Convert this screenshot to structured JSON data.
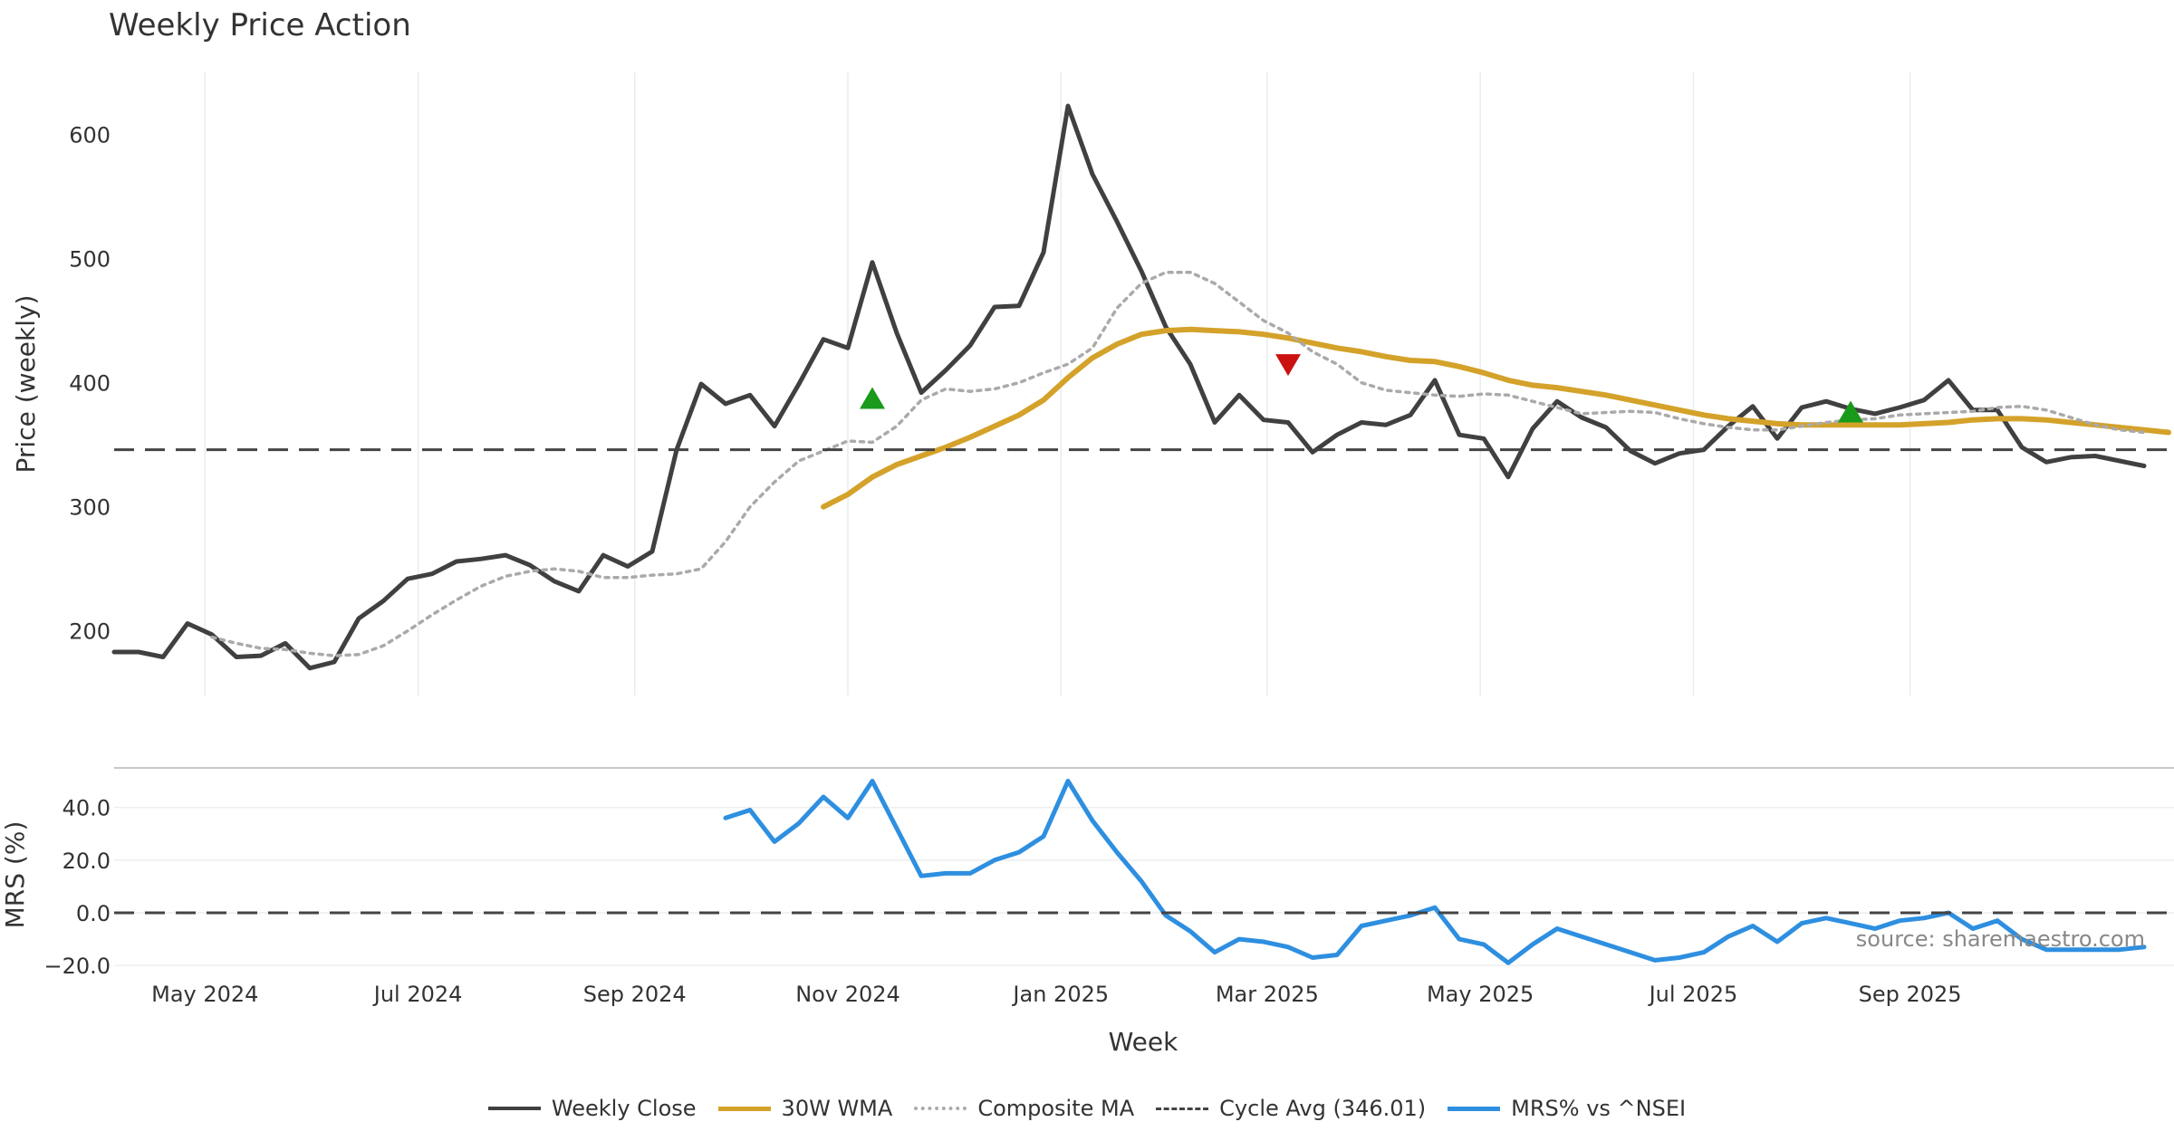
{
  "chart_data": [
    {
      "type": "line",
      "title": "Weekly Price Action",
      "ylabel": "Price (weekly)",
      "ylim": [
        148,
        650
      ],
      "yticks": [
        200,
        300,
        400,
        500,
        600
      ],
      "grid": true,
      "x_start": "2024-04-05",
      "x_step_days": 7,
      "series": [
        {
          "name": "Weekly Close",
          "color": "#404040",
          "style": "solid",
          "values": [
            183,
            183,
            179,
            206,
            197,
            179,
            180,
            190,
            170,
            175,
            210,
            224,
            242,
            246,
            256,
            258,
            261,
            253,
            240,
            232,
            261,
            252,
            264,
            346,
            399,
            383,
            390,
            365,
            399,
            435,
            428,
            497,
            440,
            392,
            410,
            430,
            461,
            462,
            505,
            623,
            568,
            530,
            490,
            445,
            415,
            368,
            390,
            370,
            368,
            344,
            358,
            368,
            366,
            374,
            402,
            358,
            355,
            324,
            363,
            385,
            372,
            364,
            345,
            335,
            343,
            346,
            365,
            381,
            355,
            380,
            385,
            379,
            375,
            380,
            386,
            402,
            378,
            378,
            348,
            336,
            340,
            341,
            337,
            333
          ]
        },
        {
          "name": "30W WMA",
          "color": "#D4A22A",
          "style": "solid",
          "start_index": 29,
          "values": [
            300,
            310,
            324,
            334,
            341,
            348,
            356,
            365,
            374,
            386,
            404,
            420,
            431,
            439,
            442,
            443,
            442,
            441,
            439,
            436,
            432,
            428,
            425,
            421,
            418,
            417,
            413,
            408,
            402,
            398,
            396,
            393,
            390,
            386,
            382,
            378,
            374,
            371,
            369,
            367,
            366,
            366,
            366,
            366,
            366,
            367,
            368,
            370,
            371,
            371,
            370,
            368,
            366,
            364,
            362,
            360
          ]
        },
        {
          "name": "Composite MA",
          "color": "#AAAAAA",
          "style": "dotted",
          "start_index": 4,
          "values": [
            195,
            190,
            186,
            185,
            182,
            180,
            181,
            188,
            200,
            213,
            225,
            236,
            244,
            248,
            250,
            248,
            243,
            243,
            245,
            246,
            250,
            272,
            300,
            320,
            337,
            345,
            353,
            352,
            365,
            386,
            395,
            393,
            395,
            400,
            408,
            415,
            428,
            460,
            480,
            489,
            489,
            480,
            465,
            450,
            440,
            425,
            415,
            400,
            394,
            392,
            390,
            389,
            391,
            390,
            385,
            380,
            375,
            376,
            377,
            376,
            371,
            367,
            364,
            362,
            362,
            365,
            368,
            370,
            371,
            374,
            375,
            376,
            377,
            380,
            381,
            378,
            372,
            366,
            362,
            360
          ]
        },
        {
          "name": "Cycle Avg (346.01)",
          "color": "#444444",
          "style": "dashed",
          "constant": 346.01
        }
      ],
      "markers": [
        {
          "type": "up",
          "index": 31,
          "value": 387,
          "color": "#1A9A1A"
        },
        {
          "type": "down",
          "index": 48,
          "value": 415,
          "color": "#CC1111"
        },
        {
          "type": "up",
          "index": 71,
          "value": 376,
          "color": "#1A9A1A"
        }
      ]
    },
    {
      "type": "line",
      "ylabel": "MRS (%)",
      "ylim": [
        -22,
        55
      ],
      "yticks": [
        -20.0,
        0.0,
        20.0,
        40.0
      ],
      "ytick_labels": [
        "−20.0",
        "0.0",
        "20.0",
        "40.0"
      ],
      "xlabel": "Week",
      "xticks": [
        "May 2024",
        "Jul 2024",
        "Sep 2024",
        "Nov 2024",
        "Jan 2025",
        "Mar 2025",
        "May 2025",
        "Jul 2025",
        "Sep 2025"
      ],
      "xtick_dates": [
        "2024-05-01",
        "2024-07-01",
        "2024-09-01",
        "2024-11-01",
        "2025-01-01",
        "2025-03-01",
        "2025-05-01",
        "2025-07-01",
        "2025-09-01"
      ],
      "series": [
        {
          "name": "MRS% vs ^NSEI",
          "color": "#2E8FE0",
          "style": "solid",
          "start_index": 25,
          "values": [
            36,
            39,
            27,
            34,
            44,
            36,
            50,
            32,
            14,
            15,
            15,
            20,
            23,
            29,
            50,
            35,
            23,
            12,
            -1,
            -7,
            -15,
            -10,
            -11,
            -13,
            -17,
            -16,
            -5,
            -3,
            -1,
            2,
            -10,
            -12,
            -19,
            -12,
            -6,
            -9,
            -12,
            -15,
            -18,
            -17,
            -15,
            -9,
            -5,
            -11,
            -4,
            -2,
            -4,
            -6,
            -3,
            -2,
            0,
            -6,
            -3,
            -10,
            -14,
            -14,
            -14,
            -14,
            -13
          ]
        },
        {
          "name": "zero-line",
          "color": "#444444",
          "style": "dashed",
          "constant": 0
        }
      ],
      "annotation": "source: sharemaestro.com"
    }
  ],
  "legend": [
    {
      "label": "Weekly Close",
      "color": "#404040",
      "style": "solid"
    },
    {
      "label": "30W WMA",
      "color": "#D4A22A",
      "style": "solid"
    },
    {
      "label": "Composite MA",
      "color": "#AAAAAA",
      "style": "dotted"
    },
    {
      "label": "Cycle Avg (346.01)",
      "color": "#444444",
      "style": "dashed"
    },
    {
      "label": "MRS% vs ^NSEI",
      "color": "#2E8FE0",
      "style": "solid"
    }
  ]
}
